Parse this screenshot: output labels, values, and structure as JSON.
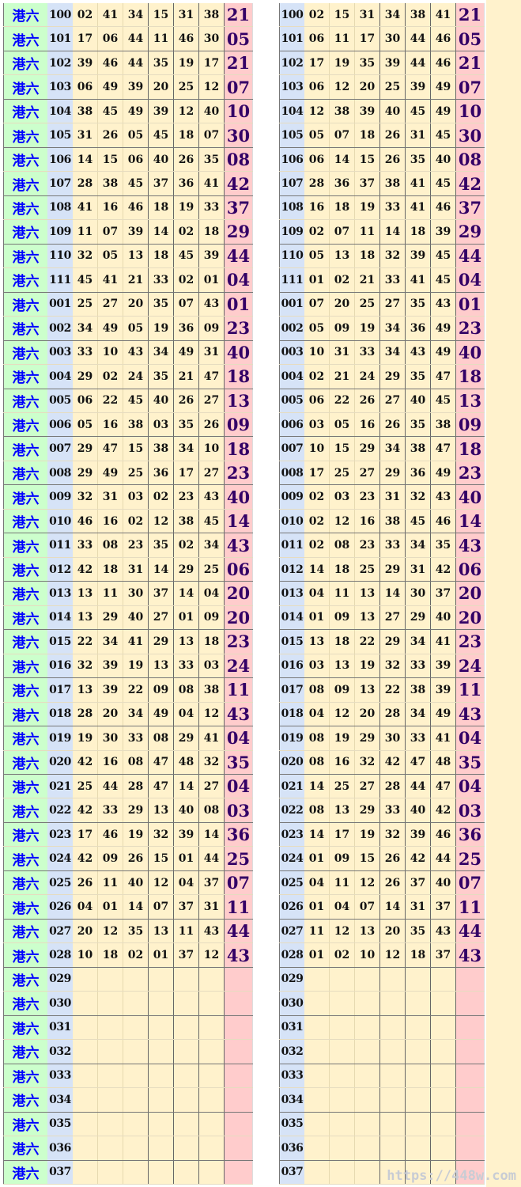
{
  "label": "港六",
  "watermark": "https://448w.com",
  "colors": {
    "label_bg": "#ccffcc",
    "issue_bg": "#d6e3f7",
    "number_bg": "#fff2cc",
    "special_bg": "#ffcccc",
    "label_text": "#0000ff",
    "special_text": "#330066"
  },
  "draws": [
    {
      "issue": "100",
      "numbers": [
        "02",
        "41",
        "34",
        "15",
        "31",
        "38"
      ],
      "sorted": [
        "02",
        "15",
        "31",
        "34",
        "38",
        "41"
      ],
      "special": "21"
    },
    {
      "issue": "101",
      "numbers": [
        "17",
        "06",
        "44",
        "11",
        "46",
        "30"
      ],
      "sorted": [
        "06",
        "11",
        "17",
        "30",
        "44",
        "46"
      ],
      "special": "05"
    },
    {
      "issue": "102",
      "numbers": [
        "39",
        "46",
        "44",
        "35",
        "19",
        "17"
      ],
      "sorted": [
        "17",
        "19",
        "35",
        "39",
        "44",
        "46"
      ],
      "special": "21"
    },
    {
      "issue": "103",
      "numbers": [
        "06",
        "49",
        "39",
        "20",
        "25",
        "12"
      ],
      "sorted": [
        "06",
        "12",
        "20",
        "25",
        "39",
        "49"
      ],
      "special": "07"
    },
    {
      "issue": "104",
      "numbers": [
        "38",
        "45",
        "49",
        "39",
        "12",
        "40"
      ],
      "sorted": [
        "12",
        "38",
        "39",
        "40",
        "45",
        "49"
      ],
      "special": "10"
    },
    {
      "issue": "105",
      "numbers": [
        "31",
        "26",
        "05",
        "45",
        "18",
        "07"
      ],
      "sorted": [
        "05",
        "07",
        "18",
        "26",
        "31",
        "45"
      ],
      "special": "30"
    },
    {
      "issue": "106",
      "numbers": [
        "14",
        "15",
        "06",
        "40",
        "26",
        "35"
      ],
      "sorted": [
        "06",
        "14",
        "15",
        "26",
        "35",
        "40"
      ],
      "special": "08"
    },
    {
      "issue": "107",
      "numbers": [
        "28",
        "38",
        "45",
        "37",
        "36",
        "41"
      ],
      "sorted": [
        "28",
        "36",
        "37",
        "38",
        "41",
        "45"
      ],
      "special": "42"
    },
    {
      "issue": "108",
      "numbers": [
        "41",
        "16",
        "46",
        "18",
        "19",
        "33"
      ],
      "sorted": [
        "16",
        "18",
        "19",
        "33",
        "41",
        "46"
      ],
      "special": "37"
    },
    {
      "issue": "109",
      "numbers": [
        "11",
        "07",
        "39",
        "14",
        "02",
        "18"
      ],
      "sorted": [
        "02",
        "07",
        "11",
        "14",
        "18",
        "39"
      ],
      "special": "29"
    },
    {
      "issue": "110",
      "numbers": [
        "32",
        "05",
        "13",
        "18",
        "45",
        "39"
      ],
      "sorted": [
        "05",
        "13",
        "18",
        "32",
        "39",
        "45"
      ],
      "special": "44"
    },
    {
      "issue": "111",
      "numbers": [
        "45",
        "41",
        "21",
        "33",
        "02",
        "01"
      ],
      "sorted": [
        "01",
        "02",
        "21",
        "33",
        "41",
        "45"
      ],
      "special": "04"
    },
    {
      "issue": "001",
      "numbers": [
        "25",
        "27",
        "20",
        "35",
        "07",
        "43"
      ],
      "sorted": [
        "07",
        "20",
        "25",
        "27",
        "35",
        "43"
      ],
      "special": "01"
    },
    {
      "issue": "002",
      "numbers": [
        "34",
        "49",
        "05",
        "19",
        "36",
        "09"
      ],
      "sorted": [
        "05",
        "09",
        "19",
        "34",
        "36",
        "49"
      ],
      "special": "23"
    },
    {
      "issue": "003",
      "numbers": [
        "33",
        "10",
        "43",
        "34",
        "49",
        "31"
      ],
      "sorted": [
        "10",
        "31",
        "33",
        "34",
        "43",
        "49"
      ],
      "special": "40"
    },
    {
      "issue": "004",
      "numbers": [
        "29",
        "02",
        "24",
        "35",
        "21",
        "47"
      ],
      "sorted": [
        "02",
        "21",
        "24",
        "29",
        "35",
        "47"
      ],
      "special": "18"
    },
    {
      "issue": "005",
      "numbers": [
        "06",
        "22",
        "45",
        "40",
        "26",
        "27"
      ],
      "sorted": [
        "06",
        "22",
        "26",
        "27",
        "40",
        "45"
      ],
      "special": "13"
    },
    {
      "issue": "006",
      "numbers": [
        "05",
        "16",
        "38",
        "03",
        "35",
        "26"
      ],
      "sorted": [
        "03",
        "05",
        "16",
        "26",
        "35",
        "38"
      ],
      "special": "09"
    },
    {
      "issue": "007",
      "numbers": [
        "29",
        "47",
        "15",
        "38",
        "34",
        "10"
      ],
      "sorted": [
        "10",
        "15",
        "29",
        "34",
        "38",
        "47"
      ],
      "special": "18"
    },
    {
      "issue": "008",
      "numbers": [
        "29",
        "49",
        "25",
        "36",
        "17",
        "27"
      ],
      "sorted": [
        "17",
        "25",
        "27",
        "29",
        "36",
        "49"
      ],
      "special": "23"
    },
    {
      "issue": "009",
      "numbers": [
        "32",
        "31",
        "03",
        "02",
        "23",
        "43"
      ],
      "sorted": [
        "02",
        "03",
        "23",
        "31",
        "32",
        "43"
      ],
      "special": "40"
    },
    {
      "issue": "010",
      "numbers": [
        "46",
        "16",
        "02",
        "12",
        "38",
        "45"
      ],
      "sorted": [
        "02",
        "12",
        "16",
        "38",
        "45",
        "46"
      ],
      "special": "14"
    },
    {
      "issue": "011",
      "numbers": [
        "33",
        "08",
        "23",
        "35",
        "02",
        "34"
      ],
      "sorted": [
        "02",
        "08",
        "23",
        "33",
        "34",
        "35"
      ],
      "special": "43"
    },
    {
      "issue": "012",
      "numbers": [
        "42",
        "18",
        "31",
        "14",
        "29",
        "25"
      ],
      "sorted": [
        "14",
        "18",
        "25",
        "29",
        "31",
        "42"
      ],
      "special": "06"
    },
    {
      "issue": "013",
      "numbers": [
        "13",
        "11",
        "30",
        "37",
        "14",
        "04"
      ],
      "sorted": [
        "04",
        "11",
        "13",
        "14",
        "30",
        "37"
      ],
      "special": "20"
    },
    {
      "issue": "014",
      "numbers": [
        "13",
        "29",
        "40",
        "27",
        "01",
        "09"
      ],
      "sorted": [
        "01",
        "09",
        "13",
        "27",
        "29",
        "40"
      ],
      "special": "20"
    },
    {
      "issue": "015",
      "numbers": [
        "22",
        "34",
        "41",
        "29",
        "13",
        "18"
      ],
      "sorted": [
        "13",
        "18",
        "22",
        "29",
        "34",
        "41"
      ],
      "special": "23"
    },
    {
      "issue": "016",
      "numbers": [
        "32",
        "39",
        "19",
        "13",
        "33",
        "03"
      ],
      "sorted": [
        "03",
        "13",
        "19",
        "32",
        "33",
        "39"
      ],
      "special": "24"
    },
    {
      "issue": "017",
      "numbers": [
        "13",
        "39",
        "22",
        "09",
        "08",
        "38"
      ],
      "sorted": [
        "08",
        "09",
        "13",
        "22",
        "38",
        "39"
      ],
      "special": "11"
    },
    {
      "issue": "018",
      "numbers": [
        "28",
        "20",
        "34",
        "49",
        "04",
        "12"
      ],
      "sorted": [
        "04",
        "12",
        "20",
        "28",
        "34",
        "49"
      ],
      "special": "43"
    },
    {
      "issue": "019",
      "numbers": [
        "19",
        "30",
        "33",
        "08",
        "29",
        "41"
      ],
      "sorted": [
        "08",
        "19",
        "29",
        "30",
        "33",
        "41"
      ],
      "special": "04"
    },
    {
      "issue": "020",
      "numbers": [
        "42",
        "16",
        "08",
        "47",
        "48",
        "32"
      ],
      "sorted": [
        "08",
        "16",
        "32",
        "42",
        "47",
        "48"
      ],
      "special": "35"
    },
    {
      "issue": "021",
      "numbers": [
        "25",
        "44",
        "28",
        "47",
        "14",
        "27"
      ],
      "sorted": [
        "14",
        "25",
        "27",
        "28",
        "44",
        "47"
      ],
      "special": "04"
    },
    {
      "issue": "022",
      "numbers": [
        "42",
        "33",
        "29",
        "13",
        "40",
        "08"
      ],
      "sorted": [
        "08",
        "13",
        "29",
        "33",
        "40",
        "42"
      ],
      "special": "03"
    },
    {
      "issue": "023",
      "numbers": [
        "17",
        "46",
        "19",
        "32",
        "39",
        "14"
      ],
      "sorted": [
        "14",
        "17",
        "19",
        "32",
        "39",
        "46"
      ],
      "special": "36"
    },
    {
      "issue": "024",
      "numbers": [
        "42",
        "09",
        "26",
        "15",
        "01",
        "44"
      ],
      "sorted": [
        "01",
        "09",
        "15",
        "26",
        "42",
        "44"
      ],
      "special": "25"
    },
    {
      "issue": "025",
      "numbers": [
        "26",
        "11",
        "40",
        "12",
        "04",
        "37"
      ],
      "sorted": [
        "04",
        "11",
        "12",
        "26",
        "37",
        "40"
      ],
      "special": "07"
    },
    {
      "issue": "026",
      "numbers": [
        "04",
        "01",
        "14",
        "07",
        "37",
        "31"
      ],
      "sorted": [
        "01",
        "04",
        "07",
        "14",
        "31",
        "37"
      ],
      "special": "11"
    },
    {
      "issue": "027",
      "numbers": [
        "20",
        "12",
        "35",
        "13",
        "11",
        "43"
      ],
      "sorted": [
        "11",
        "12",
        "13",
        "20",
        "35",
        "43"
      ],
      "special": "44"
    },
    {
      "issue": "028",
      "numbers": [
        "10",
        "18",
        "02",
        "01",
        "37",
        "12"
      ],
      "sorted": [
        "01",
        "02",
        "10",
        "12",
        "18",
        "37"
      ],
      "special": "43"
    },
    {
      "issue": "029",
      "numbers": [
        "",
        "",
        "",
        "",
        "",
        ""
      ],
      "sorted": [
        "",
        "",
        "",
        "",
        "",
        ""
      ],
      "special": ""
    },
    {
      "issue": "030",
      "numbers": [
        "",
        "",
        "",
        "",
        "",
        ""
      ],
      "sorted": [
        "",
        "",
        "",
        "",
        "",
        ""
      ],
      "special": ""
    },
    {
      "issue": "031",
      "numbers": [
        "",
        "",
        "",
        "",
        "",
        ""
      ],
      "sorted": [
        "",
        "",
        "",
        "",
        "",
        ""
      ],
      "special": ""
    },
    {
      "issue": "032",
      "numbers": [
        "",
        "",
        "",
        "",
        "",
        ""
      ],
      "sorted": [
        "",
        "",
        "",
        "",
        "",
        ""
      ],
      "special": ""
    },
    {
      "issue": "033",
      "numbers": [
        "",
        "",
        "",
        "",
        "",
        ""
      ],
      "sorted": [
        "",
        "",
        "",
        "",
        "",
        ""
      ],
      "special": ""
    },
    {
      "issue": "034",
      "numbers": [
        "",
        "",
        "",
        "",
        "",
        ""
      ],
      "sorted": [
        "",
        "",
        "",
        "",
        "",
        ""
      ],
      "special": ""
    },
    {
      "issue": "035",
      "numbers": [
        "",
        "",
        "",
        "",
        "",
        ""
      ],
      "sorted": [
        "",
        "",
        "",
        "",
        "",
        ""
      ],
      "special": ""
    },
    {
      "issue": "036",
      "numbers": [
        "",
        "",
        "",
        "",
        "",
        ""
      ],
      "sorted": [
        "",
        "",
        "",
        "",
        "",
        ""
      ],
      "special": ""
    },
    {
      "issue": "037",
      "numbers": [
        "",
        "",
        "",
        "",
        "",
        ""
      ],
      "sorted": [
        "",
        "",
        "",
        "",
        "",
        ""
      ],
      "special": ""
    }
  ]
}
